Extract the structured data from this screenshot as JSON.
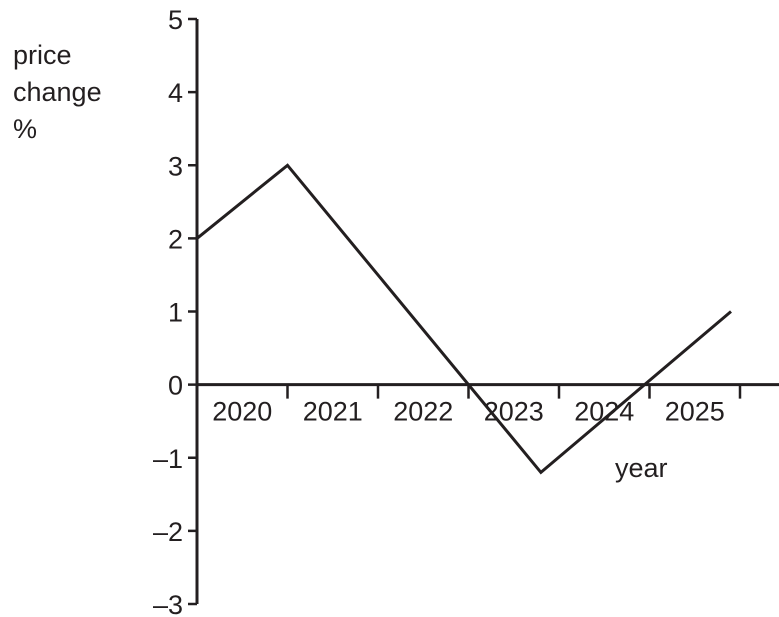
{
  "chart_data": {
    "type": "line",
    "ylabel_lines": [
      "price",
      "change",
      "%"
    ],
    "xlabel": "year",
    "yticks": [
      "5",
      "4",
      "3",
      "2",
      "1",
      "0",
      "–1",
      "–2",
      "–3"
    ],
    "ylim": [
      -3,
      5
    ],
    "categories": [
      "2020",
      "2021",
      "2022",
      "2023",
      "2024",
      "2025"
    ],
    "series": [
      {
        "x": [
          2020,
          2021,
          2023.8,
          2025.9
        ],
        "values": [
          2,
          3,
          -1.2,
          1
        ]
      }
    ],
    "line_color": "#231f20"
  }
}
